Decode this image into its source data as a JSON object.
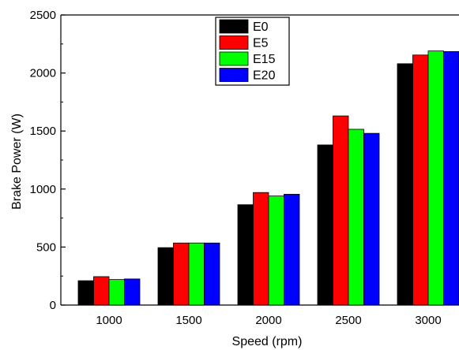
{
  "chart_data": {
    "type": "bar",
    "categories": [
      "1000",
      "1500",
      "2000",
      "2500",
      "3000"
    ],
    "series": [
      {
        "name": "E0",
        "color": "#000000",
        "values": [
          210,
          495,
          865,
          1380,
          2080
        ]
      },
      {
        "name": "E5",
        "color": "#ff0000",
        "values": [
          245,
          535,
          970,
          1630,
          2155
        ]
      },
      {
        "name": "E15",
        "color": "#00ff00",
        "values": [
          220,
          535,
          940,
          1515,
          2190
        ]
      },
      {
        "name": "E20",
        "color": "#0000ff",
        "values": [
          225,
          535,
          955,
          1480,
          2185
        ]
      }
    ],
    "title": "",
    "xlabel": "Speed (rpm)",
    "ylabel": "Brake Power (W)",
    "ylim": [
      0,
      2500
    ],
    "yticks": [
      "0",
      "500",
      "1000",
      "1500",
      "2000",
      "2500"
    ],
    "grid": false,
    "legend_position": "top-center"
  }
}
